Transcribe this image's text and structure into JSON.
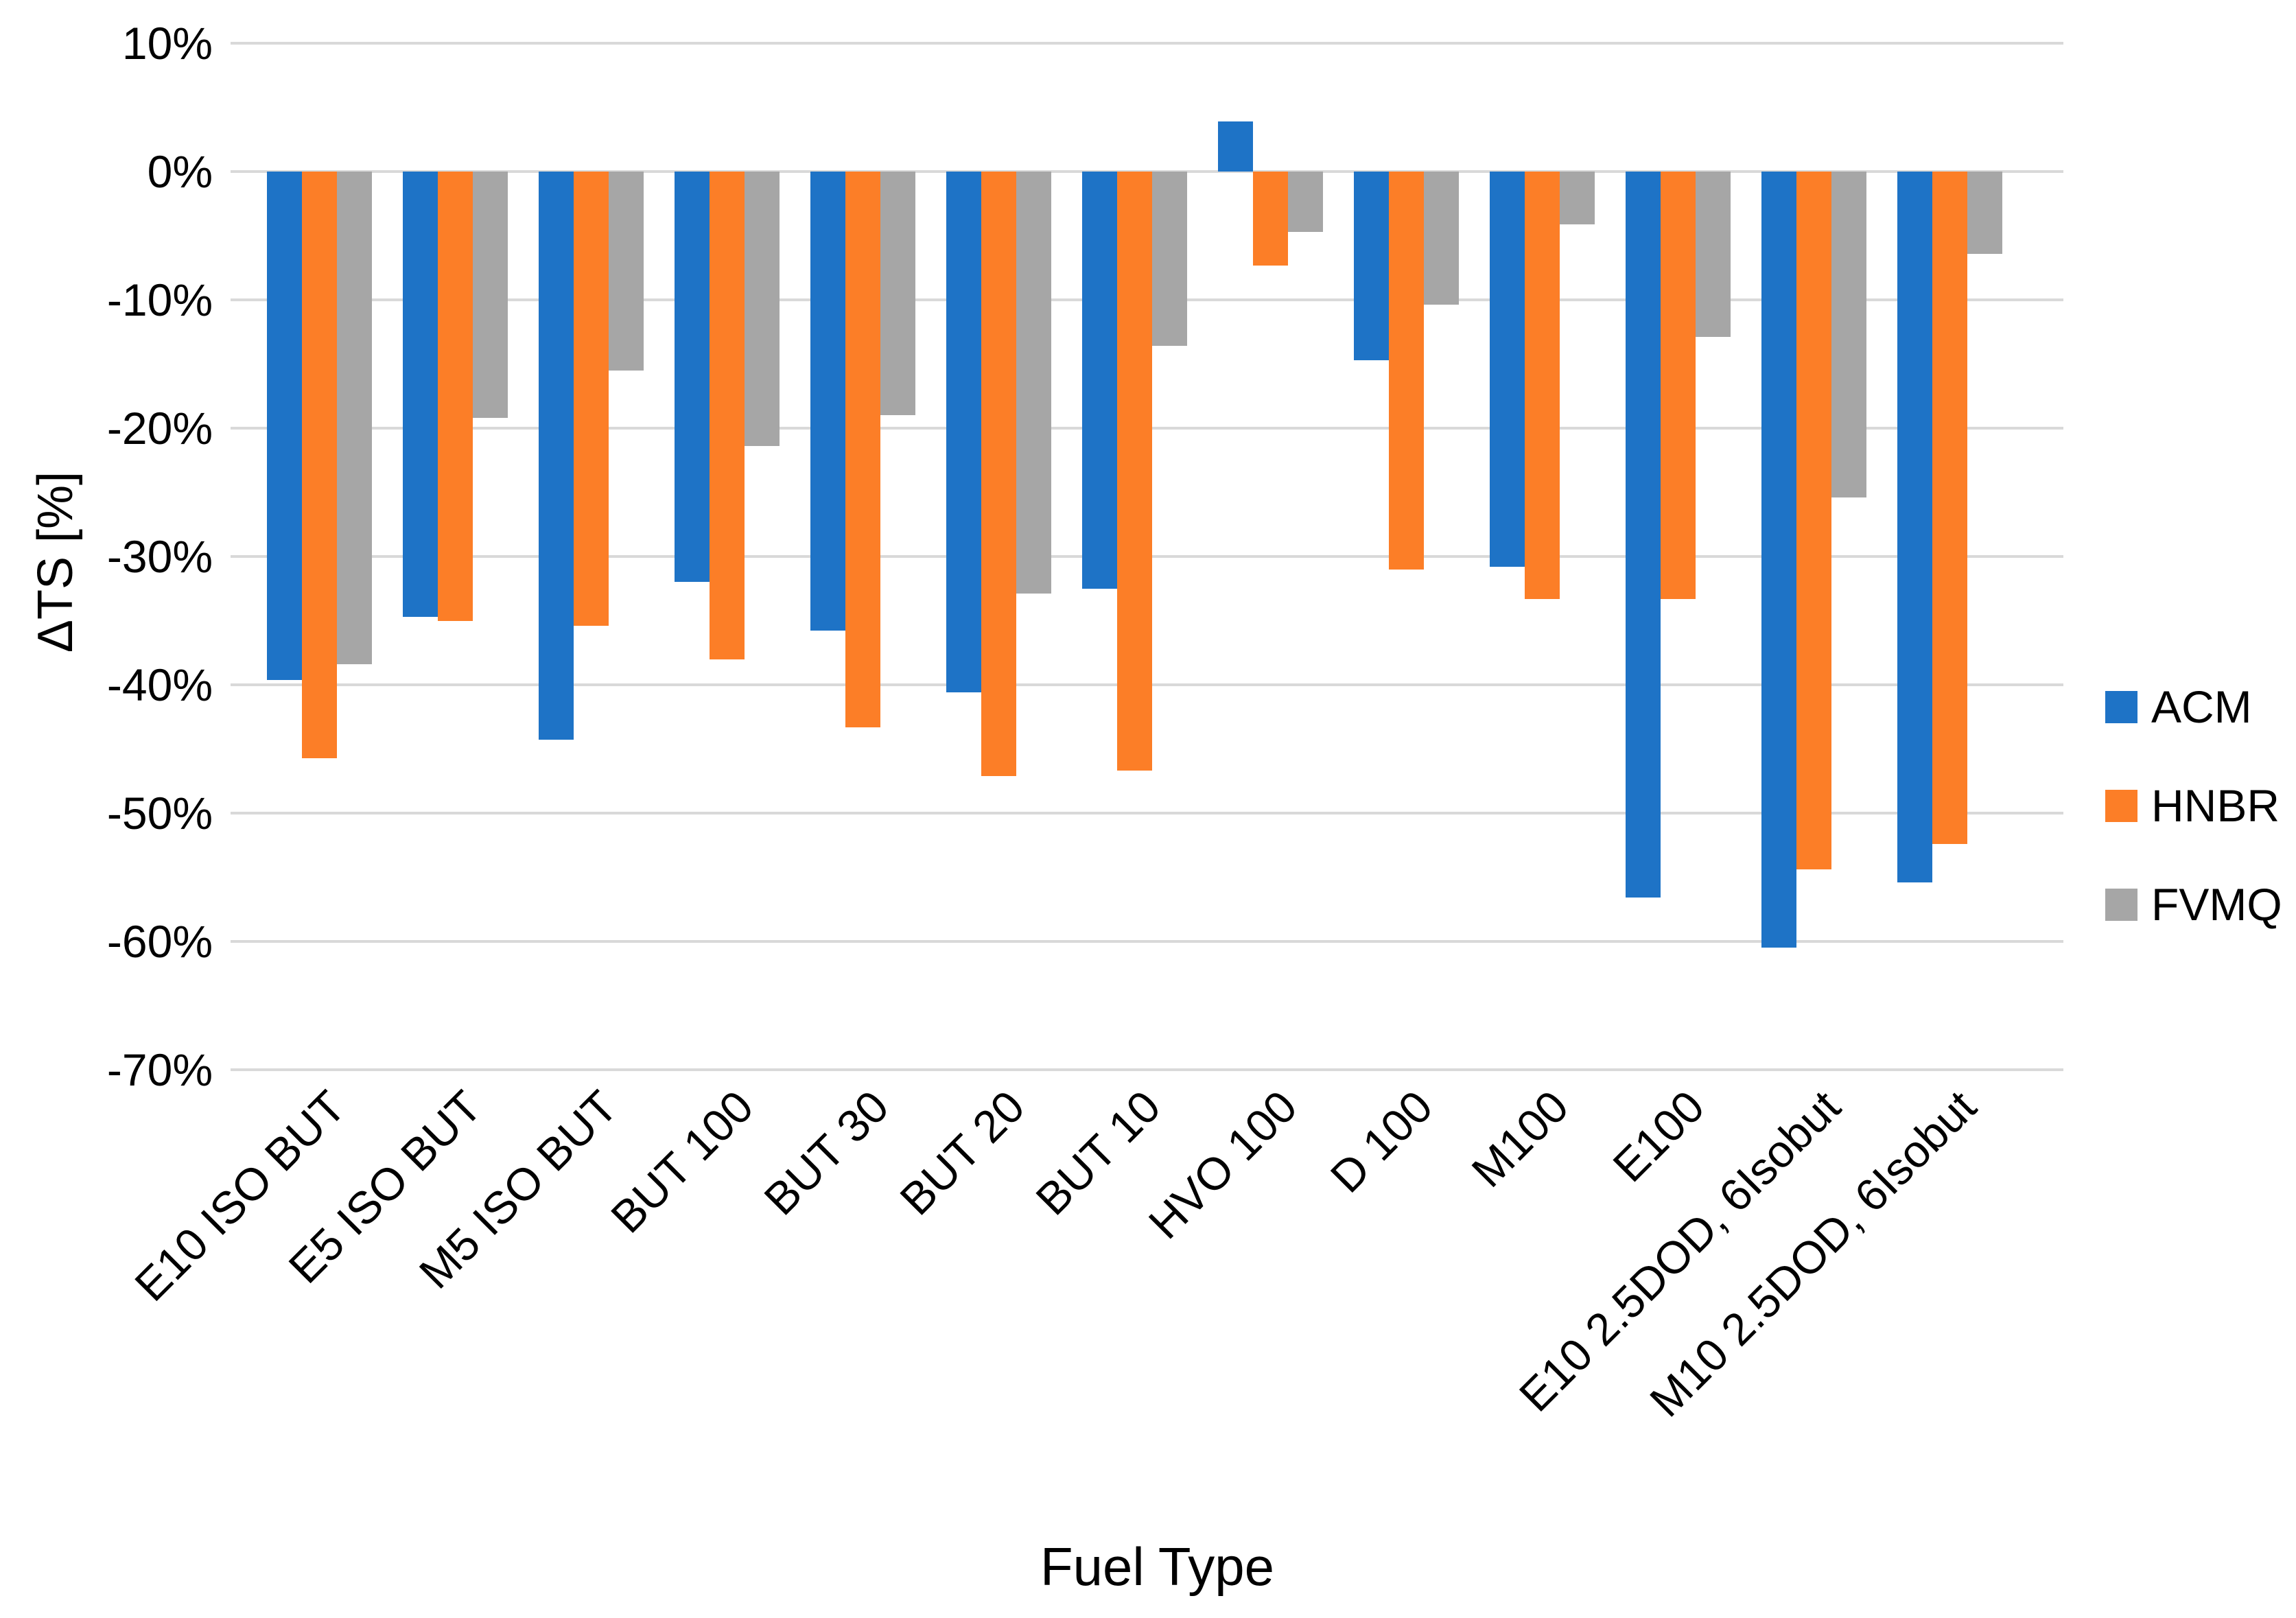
{
  "figure": {
    "background": "#ffffff"
  },
  "x_axis": {
    "title": "Fuel Type"
  },
  "y_axis": {
    "title": "ΔTS [%]"
  },
  "legend": {
    "position": "right"
  },
  "chart_data": {
    "type": "bar",
    "title": "",
    "xlabel": "Fuel Type",
    "ylabel": "ΔTS [%]",
    "ylim": [
      -70,
      10
    ],
    "grid": true,
    "grid_color": "#d9d9d9",
    "legend_position": "right",
    "yticks": [
      10,
      0,
      -10,
      -20,
      -30,
      -40,
      -50,
      -60,
      -70
    ],
    "ytick_labels": [
      "10%",
      "0%",
      "-10%",
      "-20%",
      "-30%",
      "-40%",
      "-50%",
      "-60%",
      "-70%"
    ],
    "categories": [
      "E10 ISO BUT",
      "E5 ISO BUT",
      "M5 ISO BUT",
      "BUT 100",
      "BUT 30",
      "BUT 20",
      "BUT 10",
      "HVO 100",
      "D 100",
      "M100",
      "E100",
      "E10 2.5DOD, 6Isobut",
      "M10 2.5DOD, 6Isobut"
    ],
    "series": [
      {
        "name": "ACM",
        "color": "#1e73c6",
        "values": [
          -39.6,
          -34.7,
          -44.3,
          -32.0,
          -35.8,
          -40.6,
          -32.5,
          3.9,
          -14.7,
          -30.8,
          -56.6,
          -60.5,
          -55.4
        ]
      },
      {
        "name": "HNBR",
        "color": "#fc7e27",
        "values": [
          -45.7,
          -35.0,
          -35.4,
          -38.0,
          -43.3,
          -47.1,
          -46.7,
          -7.3,
          -31.0,
          -33.3,
          -33.3,
          -54.4,
          -52.4
        ]
      },
      {
        "name": "FVMQ",
        "color": "#a6a6a6",
        "values": [
          -38.4,
          -19.2,
          -15.5,
          -21.4,
          -19.0,
          -32.9,
          -13.6,
          -4.7,
          -10.4,
          -4.1,
          -12.9,
          -25.4,
          -6.4
        ]
      }
    ]
  }
}
